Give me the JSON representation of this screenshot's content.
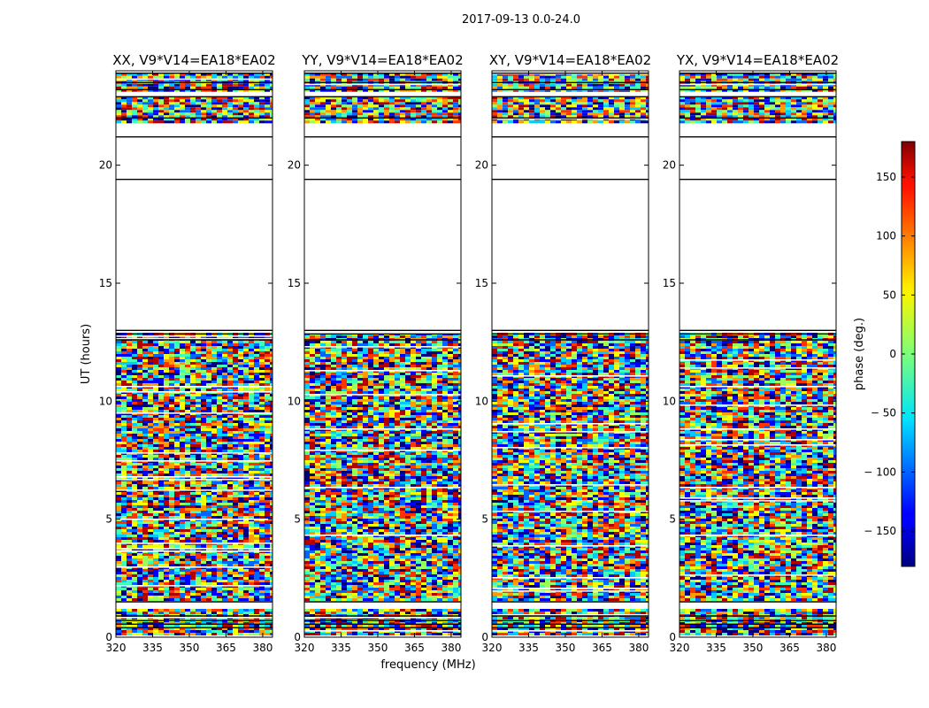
{
  "figure": {
    "suptitle": "2017-09-13 0.0-24.0",
    "ylabel": "UT (hours)",
    "xlabel": "frequency (MHz)"
  },
  "colorbar": {
    "label": "phase (deg.)",
    "range": [
      -180,
      180
    ],
    "ticks": [
      150,
      100,
      50,
      0,
      -50,
      -100,
      -150
    ],
    "tick_labels": [
      "150",
      "100",
      "50",
      "0",
      "− 50",
      "− 100",
      "− 150"
    ],
    "colormap": "jet"
  },
  "chart_data": [
    {
      "type": "heatmap",
      "title": "XX, V9*V14=EA18*EA02",
      "x_range": [
        320,
        384
      ],
      "y_range": [
        0,
        24
      ],
      "xticks": [
        320,
        335,
        350,
        365,
        380
      ],
      "yticks": [
        0,
        5,
        10,
        15,
        20
      ],
      "xtick_labels": [
        "320",
        "335",
        "350",
        "365",
        "380"
      ],
      "ytick_labels": [
        "0",
        "5",
        "10",
        "15",
        "20"
      ],
      "data_blocks": [
        [
          0.1,
          1.2
        ],
        [
          1.6,
          12.9
        ],
        [
          21.8,
          22.9
        ],
        [
          23.2,
          23.9
        ]
      ],
      "flagged_lines": [
        0.4,
        0.55,
        0.7,
        0.9,
        1.5,
        12.6,
        12.85,
        13.0,
        19.4,
        21.2,
        22.0,
        22.9,
        23.2,
        23.5,
        23.9
      ]
    },
    {
      "type": "heatmap",
      "title": "YY, V9*V14=EA18*EA02",
      "x_range": [
        320,
        384
      ],
      "y_range": [
        0,
        24
      ],
      "xticks": [
        320,
        335,
        350,
        365,
        380
      ],
      "yticks": [
        0,
        5,
        10,
        15,
        20
      ],
      "xtick_labels": [
        "320",
        "335",
        "350",
        "365",
        "380"
      ],
      "ytick_labels": [
        "0",
        "5",
        "10",
        "15",
        "20"
      ],
      "data_blocks": [
        [
          0.1,
          1.2
        ],
        [
          1.6,
          12.9
        ],
        [
          21.8,
          22.9
        ],
        [
          23.2,
          23.9
        ]
      ],
      "flagged_lines": [
        0.4,
        0.55,
        0.7,
        0.9,
        1.5,
        12.6,
        12.85,
        13.0,
        19.4,
        21.2,
        22.0,
        22.9,
        23.2,
        23.5,
        23.9
      ]
    },
    {
      "type": "heatmap",
      "title": "XY, V9*V14=EA18*EA02",
      "x_range": [
        320,
        384
      ],
      "y_range": [
        0,
        24
      ],
      "xticks": [
        320,
        335,
        350,
        365,
        380
      ],
      "yticks": [
        0,
        5,
        10,
        15,
        20
      ],
      "xtick_labels": [
        "320",
        "335",
        "350",
        "365",
        "380"
      ],
      "ytick_labels": [
        "0",
        "5",
        "10",
        "15",
        "20"
      ],
      "data_blocks": [
        [
          0.1,
          1.2
        ],
        [
          1.6,
          12.9
        ],
        [
          21.8,
          22.9
        ],
        [
          23.2,
          23.9
        ]
      ],
      "flagged_lines": [
        0.4,
        0.55,
        0.7,
        0.9,
        1.5,
        12.6,
        12.85,
        13.0,
        19.4,
        21.2,
        22.0,
        22.9,
        23.2,
        23.5,
        23.9
      ]
    },
    {
      "type": "heatmap",
      "title": "YX, V9*V14=EA18*EA02",
      "x_range": [
        320,
        384
      ],
      "y_range": [
        0,
        24
      ],
      "xticks": [
        320,
        335,
        350,
        365,
        380
      ],
      "yticks": [
        0,
        5,
        10,
        15,
        20
      ],
      "xtick_labels": [
        "320",
        "335",
        "350",
        "365",
        "380"
      ],
      "ytick_labels": [
        "0",
        "5",
        "10",
        "15",
        "20"
      ],
      "data_blocks": [
        [
          0.1,
          1.2
        ],
        [
          1.6,
          12.9
        ],
        [
          21.8,
          22.9
        ],
        [
          23.2,
          23.9
        ]
      ],
      "flagged_lines": [
        0.4,
        0.55,
        0.7,
        0.9,
        1.5,
        12.6,
        12.85,
        13.0,
        19.4,
        21.2,
        22.0,
        22.9,
        23.2,
        23.5,
        23.9
      ]
    }
  ]
}
